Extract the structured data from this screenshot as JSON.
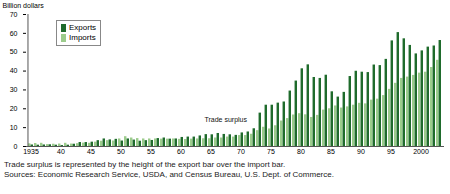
{
  "chart_data": {
    "type": "bar",
    "y_label": "Billion dollars",
    "categories": [
      "1935",
      null,
      null,
      null,
      null,
      "40",
      null,
      null,
      null,
      null,
      "45",
      null,
      null,
      null,
      null,
      "50",
      null,
      null,
      null,
      null,
      "55",
      null,
      null,
      null,
      null,
      "60",
      null,
      null,
      null,
      null,
      "65",
      null,
      null,
      null,
      null,
      "70",
      null,
      null,
      null,
      null,
      "75",
      null,
      null,
      null,
      null,
      "80",
      null,
      null,
      null,
      null,
      "85",
      null,
      null,
      null,
      null,
      "90",
      null,
      null,
      null,
      null,
      "95",
      null,
      null,
      null,
      null,
      "2000",
      null,
      null,
      null
    ],
    "series": [
      {
        "name": "Imports",
        "color": "#9ccc8c",
        "values": [
          1.4,
          1.6,
          1.7,
          1.0,
          1.2,
          1.3,
          1.7,
          1.3,
          1.5,
          1.8,
          1.7,
          2.3,
          2.8,
          3.1,
          2.9,
          4.0,
          5.2,
          4.5,
          4.2,
          4.0,
          4.0,
          4.0,
          3.9,
          3.9,
          4.0,
          3.8,
          3.7,
          3.9,
          4.0,
          4.1,
          4.1,
          4.5,
          4.5,
          5.0,
          5.0,
          5.8,
          5.8,
          6.5,
          8.4,
          10.2,
          9.3,
          11.0,
          13.5,
          14.8,
          16.7,
          17.4,
          16.8,
          15.4,
          16.5,
          19.3,
          20.0,
          21.5,
          20.4,
          21.0,
          21.9,
          22.9,
          22.6,
          24.6,
          25.1,
          27.0,
          30.3,
          33.5,
          36.1,
          36.8,
          37.7,
          38.9,
          39.4,
          41.9,
          45.7
        ]
      },
      {
        "name": "Exports",
        "color": "#1f6b2c",
        "values": [
          0.8,
          0.7,
          0.8,
          0.9,
          0.7,
          0.5,
          0.7,
          1.2,
          2.1,
          2.1,
          2.3,
          3.1,
          4.0,
          3.5,
          3.8,
          2.9,
          4.0,
          3.4,
          2.8,
          3.1,
          3.2,
          4.2,
          4.5,
          3.9,
          4.0,
          4.8,
          5.0,
          5.0,
          5.6,
          6.3,
          6.2,
          6.9,
          6.4,
          6.2,
          5.9,
          7.2,
          7.7,
          9.4,
          17.7,
          21.9,
          21.9,
          23.0,
          23.6,
          29.4,
          34.7,
          41.2,
          43.3,
          36.6,
          36.1,
          37.8,
          29.0,
          26.2,
          28.7,
          37.1,
          39.9,
          39.4,
          39.2,
          43.2,
          42.9,
          46.2,
          56.0,
          60.4,
          57.1,
          53.6,
          49.1,
          50.7,
          52.7,
          53.3,
          56.2
        ]
      }
    ],
    "ylim": [
      0,
      70
    ],
    "yticks": [
      0,
      10,
      20,
      30,
      40,
      50,
      60,
      70
    ],
    "grid": false,
    "legend": "top-left",
    "annotations": [
      "Trade surplus"
    ],
    "caption": [
      "Trade surplus is represented by the height of the export bar over the import bar.",
      "Sources: Economic Research Service, USDA, and Census Bureau, U.S. Dept. of Commerce."
    ]
  }
}
